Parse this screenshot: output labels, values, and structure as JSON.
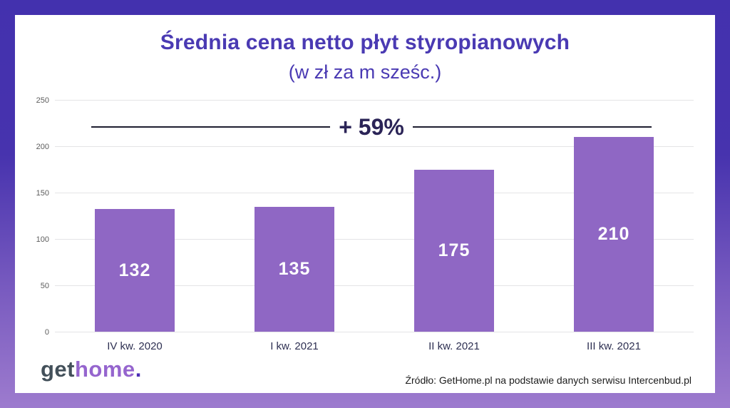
{
  "logo": {
    "part1": "get",
    "part2": "home",
    "part3": "."
  },
  "source": "Źródło: GetHome.pl na podstawie danych serwisu Intercenbud.pl",
  "chart_data": {
    "type": "bar",
    "title": "Średnia cena netto płyt styropianowych",
    "subtitle": "(w zł za m sześc.)",
    "categories": [
      "IV kw. 2020",
      "I kw. 2021",
      "II kw. 2021",
      "III kw. 2021"
    ],
    "values": [
      132,
      135,
      175,
      210
    ],
    "annotation": "+ 59%",
    "xlabel": "",
    "ylabel": "",
    "ylim": [
      0,
      250
    ],
    "yticks": [
      0,
      50,
      100,
      150,
      200,
      250
    ],
    "grid": true,
    "legend": false,
    "value_label_position": "center-inside",
    "bar_color": "#8F67C4"
  },
  "colors": {
    "background_gradient_top": "#4331AE",
    "background_gradient_bottom": "#9D7BCE",
    "card": "#FFFFFF",
    "title": "#4A3AB3",
    "bar": "#8F67C4",
    "bar_value_text": "#FFFFFF",
    "annotation_text": "#2B2457",
    "annotation_line": "#1E1E30",
    "x_axis_label": "#2E3052",
    "y_tick_label": "#5C5C5C",
    "gridline": "#E4E4E6",
    "logo_get": "#43505A",
    "logo_home": "#9565CE",
    "logo_dot": "#4B2DB5",
    "source_text": "#1C1C1C"
  }
}
